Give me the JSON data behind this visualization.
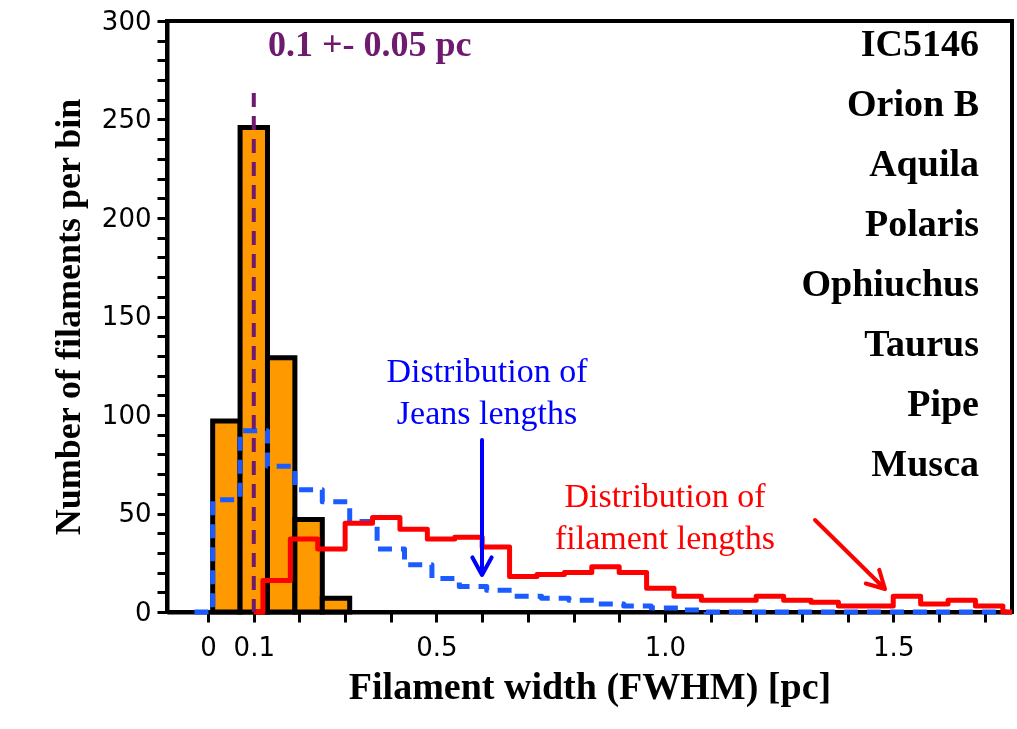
{
  "chart_data": {
    "type": "step",
    "xlabel": "Filament width (FWHM) [pc]",
    "ylabel": "Number of filaments per bin",
    "xlim": [
      -0.09,
      1.76
    ],
    "ylim": [
      0,
      300
    ],
    "xticks": [
      0,
      0.1,
      {
        "value": 0.2,
        "label": null
      },
      {
        "value": 0.3,
        "label": null
      },
      {
        "value": 0.4,
        "label": null
      },
      0.5,
      {
        "value": 0.6,
        "label": null
      },
      {
        "value": 0.7,
        "label": null
      },
      {
        "value": 0.8,
        "label": null
      },
      {
        "value": 0.9,
        "label": null
      },
      {
        "value": 1.0,
        "label": "1.0"
      },
      {
        "value": 1.1,
        "label": null
      },
      {
        "value": 1.2,
        "label": null
      },
      {
        "value": 1.3,
        "label": null
      },
      {
        "value": 1.4,
        "label": null
      },
      1.5,
      {
        "value": 1.6,
        "label": null
      },
      {
        "value": 1.7,
        "label": null
      }
    ],
    "yticks": [
      0,
      {
        "value": 10,
        "label": null
      },
      {
        "value": 20,
        "label": null
      },
      {
        "value": 30,
        "label": null
      },
      {
        "value": 40,
        "label": null
      },
      50,
      {
        "value": 60,
        "label": null
      },
      {
        "value": 70,
        "label": null
      },
      {
        "value": 80,
        "label": null
      },
      {
        "value": 90,
        "label": null
      },
      100,
      {
        "value": 110,
        "label": null
      },
      {
        "value": 120,
        "label": null
      },
      {
        "value": 130,
        "label": null
      },
      {
        "value": 140,
        "label": null
      },
      150,
      {
        "value": 160,
        "label": null
      },
      {
        "value": 170,
        "label": null
      },
      {
        "value": 180,
        "label": null
      },
      {
        "value": 190,
        "label": null
      },
      200,
      {
        "value": 210,
        "label": null
      },
      {
        "value": 220,
        "label": null
      },
      {
        "value": 230,
        "label": null
      },
      {
        "value": 240,
        "label": null
      },
      250,
      {
        "value": 260,
        "label": null
      },
      {
        "value": 270,
        "label": null
      },
      {
        "value": 280,
        "label": null
      },
      {
        "value": 290,
        "label": null
      },
      300
    ],
    "grid": false,
    "series": [
      {
        "type": "histogram",
        "color": "#ff9900",
        "bins": [
          0.01,
          0.07,
          0.13,
          0.19,
          0.25,
          0.31
        ],
        "values": [
          97,
          246,
          129,
          47,
          7
        ]
      },
      {
        "color": "#1a5cff",
        "line_style": "dashed",
        "x": [
          -0.03,
          0.01,
          0.07,
          0.13,
          0.19,
          0.25,
          0.31,
          0.37,
          0.43,
          0.49,
          0.55,
          0.61,
          0.67,
          0.73,
          0.79,
          0.85,
          0.91,
          0.97,
          1.03,
          1.09,
          1.75
        ],
        "values": [
          0,
          57,
          92,
          74,
          62,
          56,
          46,
          32,
          24,
          17,
          13,
          11,
          8,
          7,
          6,
          4,
          3,
          2,
          1,
          0,
          0
        ]
      },
      {
        "color": "#ff0000",
        "line_style": "solid",
        "x": [
          0.1,
          0.12,
          0.18,
          0.24,
          0.3,
          0.36,
          0.42,
          0.48,
          0.54,
          0.6,
          0.66,
          0.72,
          0.78,
          0.84,
          0.9,
          0.96,
          1.02,
          1.08,
          1.14,
          1.2,
          1.26,
          1.32,
          1.38,
          1.44,
          1.5,
          1.56,
          1.62,
          1.68,
          1.74,
          1.76
        ],
        "values": [
          0,
          16,
          37,
          32,
          45,
          48,
          42,
          37,
          38,
          33,
          18,
          19,
          20,
          23,
          20,
          12,
          8,
          6,
          6,
          8,
          6,
          5,
          3,
          3,
          8,
          4,
          6,
          3,
          0,
          0
        ]
      }
    ],
    "ref_lines": [
      {
        "axis": "x",
        "value": 0.1,
        "label": "0.1 +- 0.05 pc",
        "color": "#6e1a6e",
        "line_style": "dashed"
      }
    ],
    "annotations": [
      "Distribution of\nJeans lengths",
      "Distribution of\nfilament lengths",
      "IC5146",
      "Orion B",
      "Aquila",
      "Polaris",
      "Ophiuchus",
      "Taurus",
      "Pipe",
      "Musca"
    ]
  }
}
